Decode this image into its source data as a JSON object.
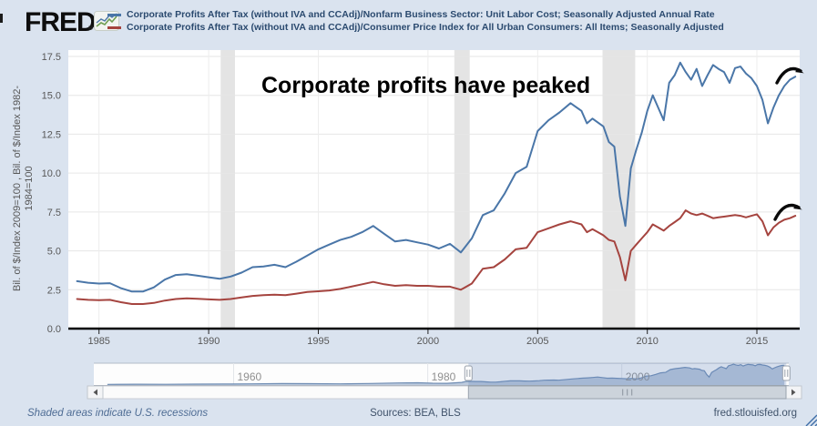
{
  "header": {
    "logo_text": "FRED",
    "registered_mark": "®",
    "legend": [
      {
        "label": "Corporate Profits After Tax (without IVA and CCAdj)/Nonfarm Business Sector: Unit Labor Cost; Seasonally Adjusted Annual Rate",
        "color": "#4a76a8"
      },
      {
        "label": "Corporate Profits After Tax (without IVA and CCAdj)/Consumer Price Index for All Urban Consumers: All Items; Seasonally Adjusted",
        "color": "#a5443f"
      }
    ]
  },
  "footer": {
    "recession_note": "Shaded areas indicate U.S. recessions",
    "sources": "Sources: BEA, BLS",
    "site": "fred.stlouisfed.org"
  },
  "colors": {
    "background": "#dae3ef",
    "plot_background": "#ffffff",
    "series_blue": "#4a76a8",
    "series_red": "#a5443f",
    "recession_band": "#e4e4e4",
    "gridline": "#e6e6e6",
    "axis_text": "#575757",
    "nav_label": "#909090",
    "annotation_text": "#000000"
  },
  "chart_data": {
    "type": "line",
    "title": "Corporate profits have peaked",
    "xlabel": "",
    "ylabel": "Bil. of $/Index 2009=100 , Bil. of $/Index 1982-1984=100",
    "ylabel_line1": "Bil. of $/Index 2009=100 , Bil. of $/Index 1982-",
    "ylabel_line2": "1984=100",
    "ylim": [
      0,
      17.9
    ],
    "yticks": [
      0,
      2.5,
      5,
      7.5,
      10,
      12.5,
      15,
      17.5
    ],
    "xlim": [
      1983.6,
      2016.95
    ],
    "xticks": [
      1985,
      1990,
      1995,
      2000,
      2005,
      2010,
      2015
    ],
    "grid": true,
    "legend_position": "top",
    "x": [
      1984,
      1984.5,
      1985,
      1985.5,
      1986,
      1986.5,
      1987,
      1987.5,
      1988,
      1988.5,
      1989,
      1989.5,
      1990,
      1990.5,
      1991,
      1991.5,
      1992,
      1992.5,
      1993,
      1993.5,
      1994,
      1994.5,
      1995,
      1995.5,
      1996,
      1996.5,
      1997,
      1997.5,
      1998,
      1998.5,
      1999,
      1999.5,
      2000,
      2000.5,
      2001,
      2001.5,
      2002,
      2002.5,
      2003,
      2003.5,
      2004,
      2004.5,
      2005,
      2005.5,
      2006,
      2006.5,
      2007,
      2007.25,
      2007.5,
      2008,
      2008.25,
      2008.5,
      2008.75,
      2009,
      2009.25,
      2009.5,
      2009.75,
      2010,
      2010.25,
      2010.5,
      2010.75,
      2011,
      2011.25,
      2011.5,
      2011.75,
      2012,
      2012.25,
      2012.5,
      2012.75,
      2013,
      2013.25,
      2013.5,
      2013.75,
      2014,
      2014.25,
      2014.5,
      2014.75,
      2015,
      2015.25,
      2015.5,
      2015.75,
      2016,
      2016.25,
      2016.5,
      2016.75
    ],
    "series": [
      {
        "name": "Corporate Profits After Tax (without IVA and CCAdj)/Nonfarm Business Sector: Unit Labor Cost; Seasonally Adjusted Annual Rate",
        "color": "#4a76a8",
        "values": [
          3.05,
          2.95,
          2.9,
          2.92,
          2.6,
          2.38,
          2.38,
          2.65,
          3.15,
          3.45,
          3.5,
          3.4,
          3.3,
          3.2,
          3.35,
          3.6,
          3.95,
          4.0,
          4.1,
          3.95,
          4.3,
          4.7,
          5.1,
          5.4,
          5.7,
          5.9,
          6.2,
          6.6,
          6.1,
          5.6,
          5.7,
          5.55,
          5.4,
          5.15,
          5.45,
          4.9,
          5.8,
          7.3,
          7.6,
          8.7,
          10.0,
          10.4,
          12.7,
          13.4,
          13.9,
          14.5,
          14.0,
          13.2,
          13.5,
          13.0,
          12.0,
          11.7,
          8.5,
          6.6,
          10.3,
          11.5,
          12.6,
          14.0,
          15.0,
          14.2,
          13.4,
          15.8,
          16.3,
          17.1,
          16.5,
          16.0,
          16.7,
          15.6,
          16.3,
          16.95,
          16.7,
          16.5,
          15.8,
          16.75,
          16.85,
          16.4,
          16.1,
          15.6,
          14.7,
          13.2,
          14.2,
          15.0,
          15.6,
          16.0,
          16.2
        ]
      },
      {
        "name": "Corporate Profits After Tax (without IVA and CCAdj)/Consumer Price Index for All Urban Consumers: All Items; Seasonally Adjusted",
        "color": "#a5443f",
        "values": [
          1.9,
          1.85,
          1.83,
          1.85,
          1.7,
          1.58,
          1.58,
          1.65,
          1.8,
          1.9,
          1.95,
          1.92,
          1.88,
          1.85,
          1.9,
          2.0,
          2.1,
          2.15,
          2.18,
          2.15,
          2.25,
          2.35,
          2.4,
          2.45,
          2.55,
          2.7,
          2.85,
          3.0,
          2.85,
          2.75,
          2.8,
          2.75,
          2.75,
          2.7,
          2.7,
          2.5,
          2.9,
          3.85,
          3.95,
          4.45,
          5.1,
          5.2,
          6.2,
          6.45,
          6.7,
          6.9,
          6.7,
          6.2,
          6.4,
          6.0,
          5.7,
          5.6,
          4.6,
          3.1,
          5.0,
          5.4,
          5.8,
          6.2,
          6.7,
          6.5,
          6.3,
          6.6,
          6.85,
          7.1,
          7.6,
          7.4,
          7.3,
          7.4,
          7.25,
          7.1,
          7.15,
          7.2,
          7.25,
          7.3,
          7.25,
          7.15,
          7.25,
          7.35,
          6.9,
          6.0,
          6.5,
          6.8,
          7.0,
          7.1,
          7.25
        ]
      }
    ],
    "recessions": [
      [
        1990.55,
        1991.2
      ],
      [
        2001.2,
        2001.9
      ],
      [
        2007.96,
        2009.45
      ]
    ],
    "navigator": {
      "xlim": [
        1945.6,
        2017.2
      ],
      "xticks": [
        1960,
        1980,
        2000
      ],
      "selected": [
        1984.2,
        2016.95
      ],
      "pre_x": [
        1947,
        1950,
        1953,
        1956,
        1959,
        1962,
        1965,
        1968,
        1971,
        1974,
        1977,
        1979,
        1980.5,
        1982,
        1983.5
      ],
      "pre_values": [
        0.55,
        0.65,
        0.6,
        0.75,
        0.8,
        0.95,
        1.2,
        1.1,
        1.0,
        1.3,
        1.7,
        1.85,
        1.5,
        1.45,
        2.2
      ]
    }
  }
}
